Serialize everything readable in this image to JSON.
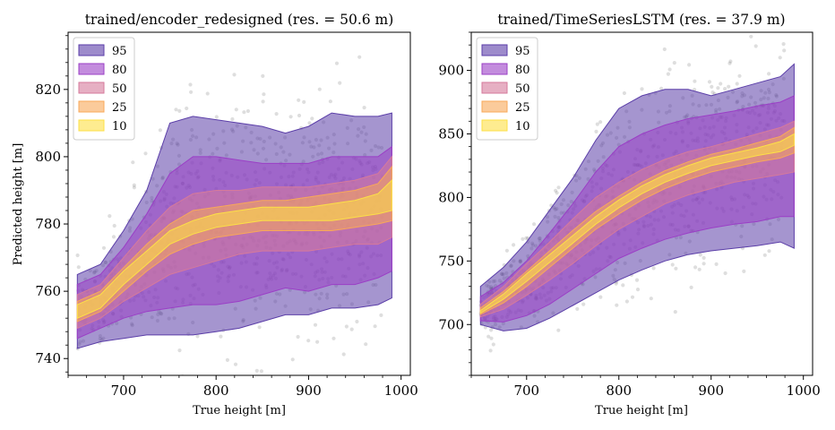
{
  "chart_data": [
    {
      "type": "area",
      "title": "trained/encoder_redesigned (res. = 50.6 m)",
      "xlabel": "True height [m]",
      "ylabel": "Predicted height [m]",
      "xlim": [
        640,
        1010
      ],
      "ylim": [
        735,
        837
      ],
      "xticks": [
        700,
        800,
        900,
        1000
      ],
      "yticks": [
        740,
        760,
        780,
        800,
        820
      ],
      "legend_position": "top-left",
      "scatter_color": "#000000",
      "x": [
        650,
        675,
        700,
        725,
        750,
        775,
        800,
        825,
        850,
        875,
        900,
        925,
        950,
        975,
        990
      ],
      "median": [
        754,
        757,
        764,
        770,
        776,
        779,
        781,
        782,
        783,
        783,
        783,
        783,
        784,
        785,
        786
      ],
      "bands": [
        {
          "name": "95",
          "color": "#5b3ea8",
          "lower": [
            743,
            745,
            746,
            747,
            747,
            747,
            748,
            749,
            751,
            753,
            753,
            755,
            755,
            756,
            758
          ],
          "upper": [
            765,
            768,
            778,
            790,
            810,
            812,
            811,
            810,
            809,
            807,
            809,
            813,
            812,
            812,
            813
          ]
        },
        {
          "name": "80",
          "color": "#9b3fc6",
          "lower": [
            746,
            749,
            752,
            754,
            755,
            756,
            756,
            757,
            759,
            761,
            760,
            762,
            762,
            764,
            766
          ],
          "upper": [
            762,
            765,
            773,
            783,
            795,
            800,
            800,
            799,
            798,
            798,
            798,
            800,
            800,
            800,
            803
          ]
        },
        {
          "name": "50",
          "color": "#d67a9b",
          "lower": [
            749,
            752,
            757,
            761,
            765,
            767,
            769,
            771,
            772,
            772,
            772,
            773,
            774,
            774,
            776
          ],
          "upper": [
            759,
            762,
            770,
            778,
            785,
            789,
            790,
            790,
            791,
            791,
            791,
            792,
            793,
            795,
            800
          ]
        },
        {
          "name": "25",
          "color": "#f8a859",
          "lower": [
            751,
            754,
            760,
            766,
            771,
            774,
            776,
            777,
            778,
            778,
            778,
            778,
            779,
            780,
            781
          ],
          "upper": [
            757,
            760,
            767,
            774,
            780,
            784,
            785,
            786,
            787,
            787,
            788,
            789,
            790,
            792,
            797
          ]
        },
        {
          "name": "10",
          "color": "#fde046",
          "lower": [
            752,
            755,
            762,
            768,
            774,
            777,
            779,
            780,
            781,
            781,
            781,
            781,
            782,
            783,
            784
          ],
          "upper": [
            756,
            759,
            766,
            772,
            778,
            781,
            783,
            784,
            785,
            785,
            785,
            786,
            787,
            789,
            793
          ]
        }
      ]
    },
    {
      "type": "area",
      "title": "trained/TimeSeriesLSTM (res. = 37.9 m)",
      "xlabel": "True height [m]",
      "ylabel": "",
      "xlim": [
        640,
        1010
      ],
      "ylim": [
        660,
        930
      ],
      "xticks": [
        700,
        800,
        900,
        1000
      ],
      "yticks": [
        700,
        750,
        800,
        850,
        900
      ],
      "legend_position": "top-left",
      "scatter_color": "#000000",
      "x": [
        650,
        675,
        700,
        725,
        750,
        775,
        800,
        825,
        850,
        875,
        900,
        925,
        950,
        975,
        990
      ],
      "median": [
        710,
        722,
        737,
        752,
        767,
        782,
        795,
        806,
        815,
        822,
        828,
        832,
        836,
        840,
        845
      ],
      "bands": [
        {
          "name": "95",
          "color": "#5b3ea8",
          "lower": [
            700,
            695,
            697,
            705,
            715,
            725,
            735,
            743,
            750,
            755,
            758,
            760,
            762,
            765,
            760
          ],
          "upper": [
            730,
            745,
            765,
            790,
            815,
            845,
            870,
            880,
            885,
            885,
            880,
            885,
            890,
            895,
            905
          ]
        },
        {
          "name": "80",
          "color": "#9b3fc6",
          "lower": [
            703,
            702,
            707,
            716,
            728,
            740,
            752,
            760,
            767,
            772,
            776,
            779,
            781,
            785,
            785
          ],
          "upper": [
            722,
            733,
            750,
            772,
            795,
            820,
            840,
            850,
            857,
            862,
            865,
            868,
            872,
            875,
            880
          ]
        },
        {
          "name": "50",
          "color": "#d67a9b",
          "lower": [
            706,
            712,
            723,
            735,
            748,
            762,
            775,
            785,
            795,
            802,
            807,
            812,
            815,
            818,
            820
          ],
          "upper": [
            716,
            730,
            748,
            765,
            783,
            800,
            812,
            822,
            830,
            836,
            840,
            845,
            850,
            855,
            860
          ]
        },
        {
          "name": "25",
          "color": "#f8a859",
          "lower": [
            708,
            717,
            730,
            745,
            760,
            775,
            787,
            798,
            807,
            814,
            820,
            824,
            828,
            831,
            835
          ],
          "upper": [
            713,
            726,
            742,
            758,
            774,
            789,
            801,
            812,
            821,
            828,
            834,
            838,
            843,
            848,
            855
          ]
        },
        {
          "name": "10",
          "color": "#fde046",
          "lower": [
            709,
            720,
            734,
            749,
            764,
            779,
            792,
            803,
            812,
            819,
            825,
            829,
            833,
            836,
            841
          ],
          "upper": [
            711,
            724,
            740,
            755,
            770,
            785,
            798,
            809,
            818,
            825,
            831,
            835,
            839,
            844,
            850
          ]
        }
      ]
    }
  ]
}
